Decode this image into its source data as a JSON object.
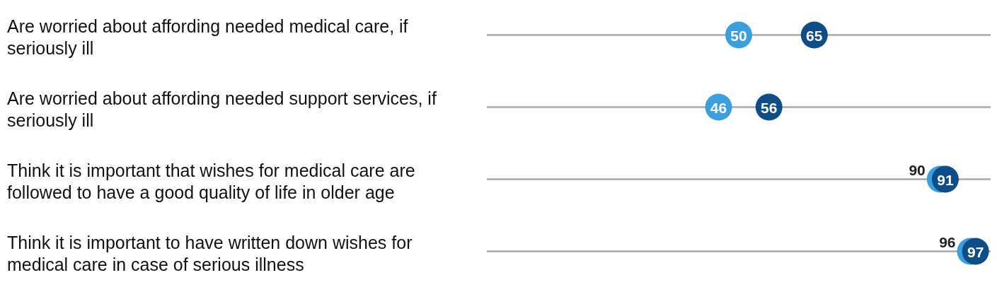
{
  "chart_data": {
    "type": "scatter",
    "orientation": "horizontal",
    "categories": [
      "Are worried about affording needed medical care, if seriously ill",
      "Are worried about affording needed support services, if seriously ill",
      "Think it is important that wishes for medical care are followed to have a good quality of life in older age",
      "Think it is important to have written down wishes for medical care in case of serious illness"
    ],
    "xlim": [
      0,
      100
    ],
    "grid": "y",
    "data_labels": true,
    "marker": "circle",
    "series": [
      {
        "color": "#3a9fdc",
        "values": [
          50,
          46,
          90,
          96
        ]
      },
      {
        "color": "#0e4d85",
        "values": [
          65,
          56,
          91,
          97
        ]
      }
    ]
  }
}
